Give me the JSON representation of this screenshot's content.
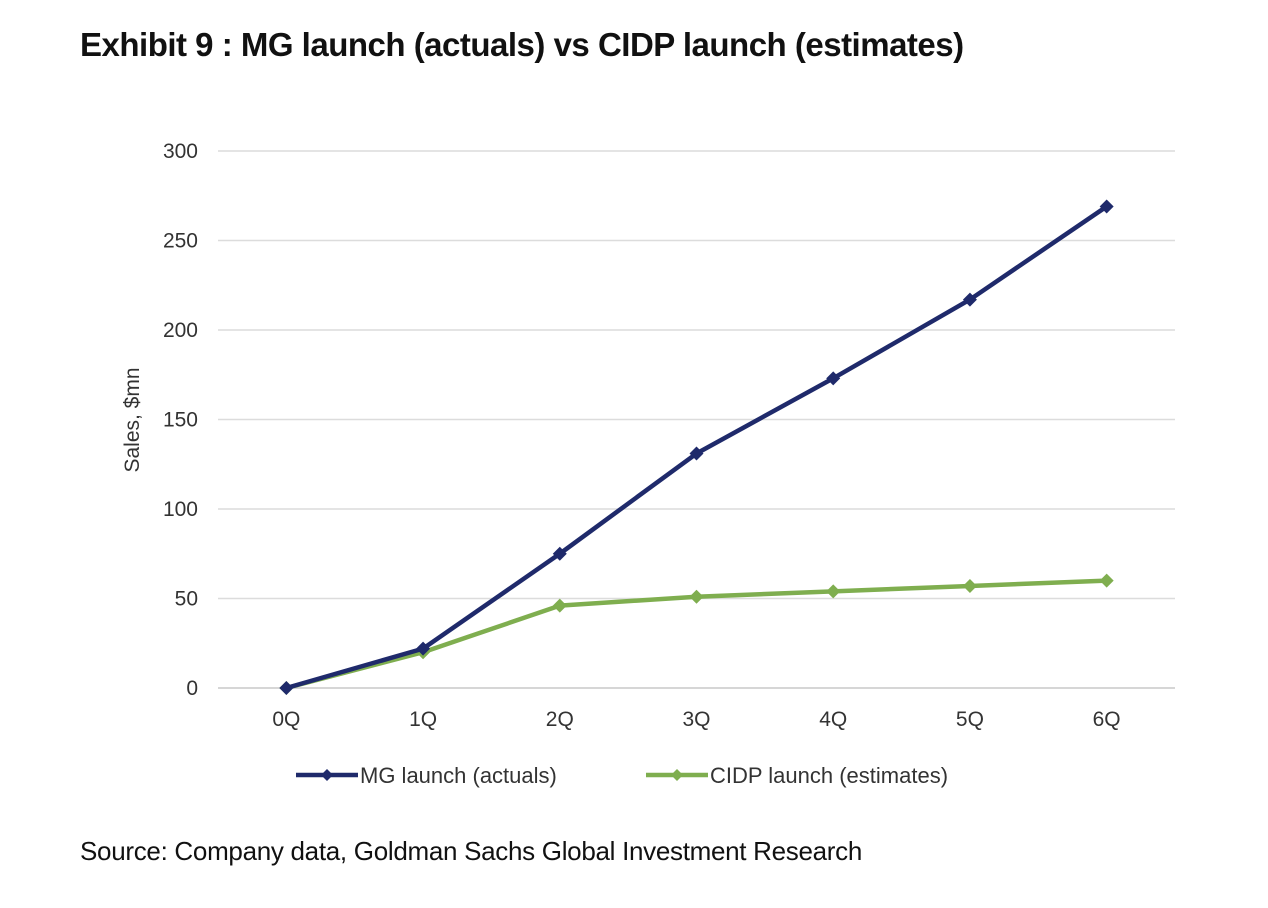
{
  "title": "Exhibit 9 : MG launch (actuals) vs CIDP launch (estimates)",
  "source": "Source: Company data, Goldman Sachs Global Investment Research",
  "chart_data": {
    "type": "line",
    "title": "",
    "xlabel": "",
    "ylabel": "Sales, $mn",
    "categories": [
      "0Q",
      "1Q",
      "2Q",
      "3Q",
      "4Q",
      "5Q",
      "6Q"
    ],
    "ylim": [
      0,
      300
    ],
    "yticks": [
      "0",
      "50",
      "100",
      "150",
      "200",
      "250",
      "300"
    ],
    "grid": true,
    "legend_position": "bottom",
    "series": [
      {
        "name": "MG launch (actuals)",
        "color": "#1f2a6b",
        "marker": "diamond",
        "values": [
          0,
          22,
          75,
          131,
          173,
          217,
          269
        ]
      },
      {
        "name": "CIDP launch (estimates)",
        "color": "#7fae4f",
        "marker": "diamond",
        "values": [
          0,
          20,
          46,
          51,
          54,
          57,
          60
        ]
      }
    ]
  }
}
